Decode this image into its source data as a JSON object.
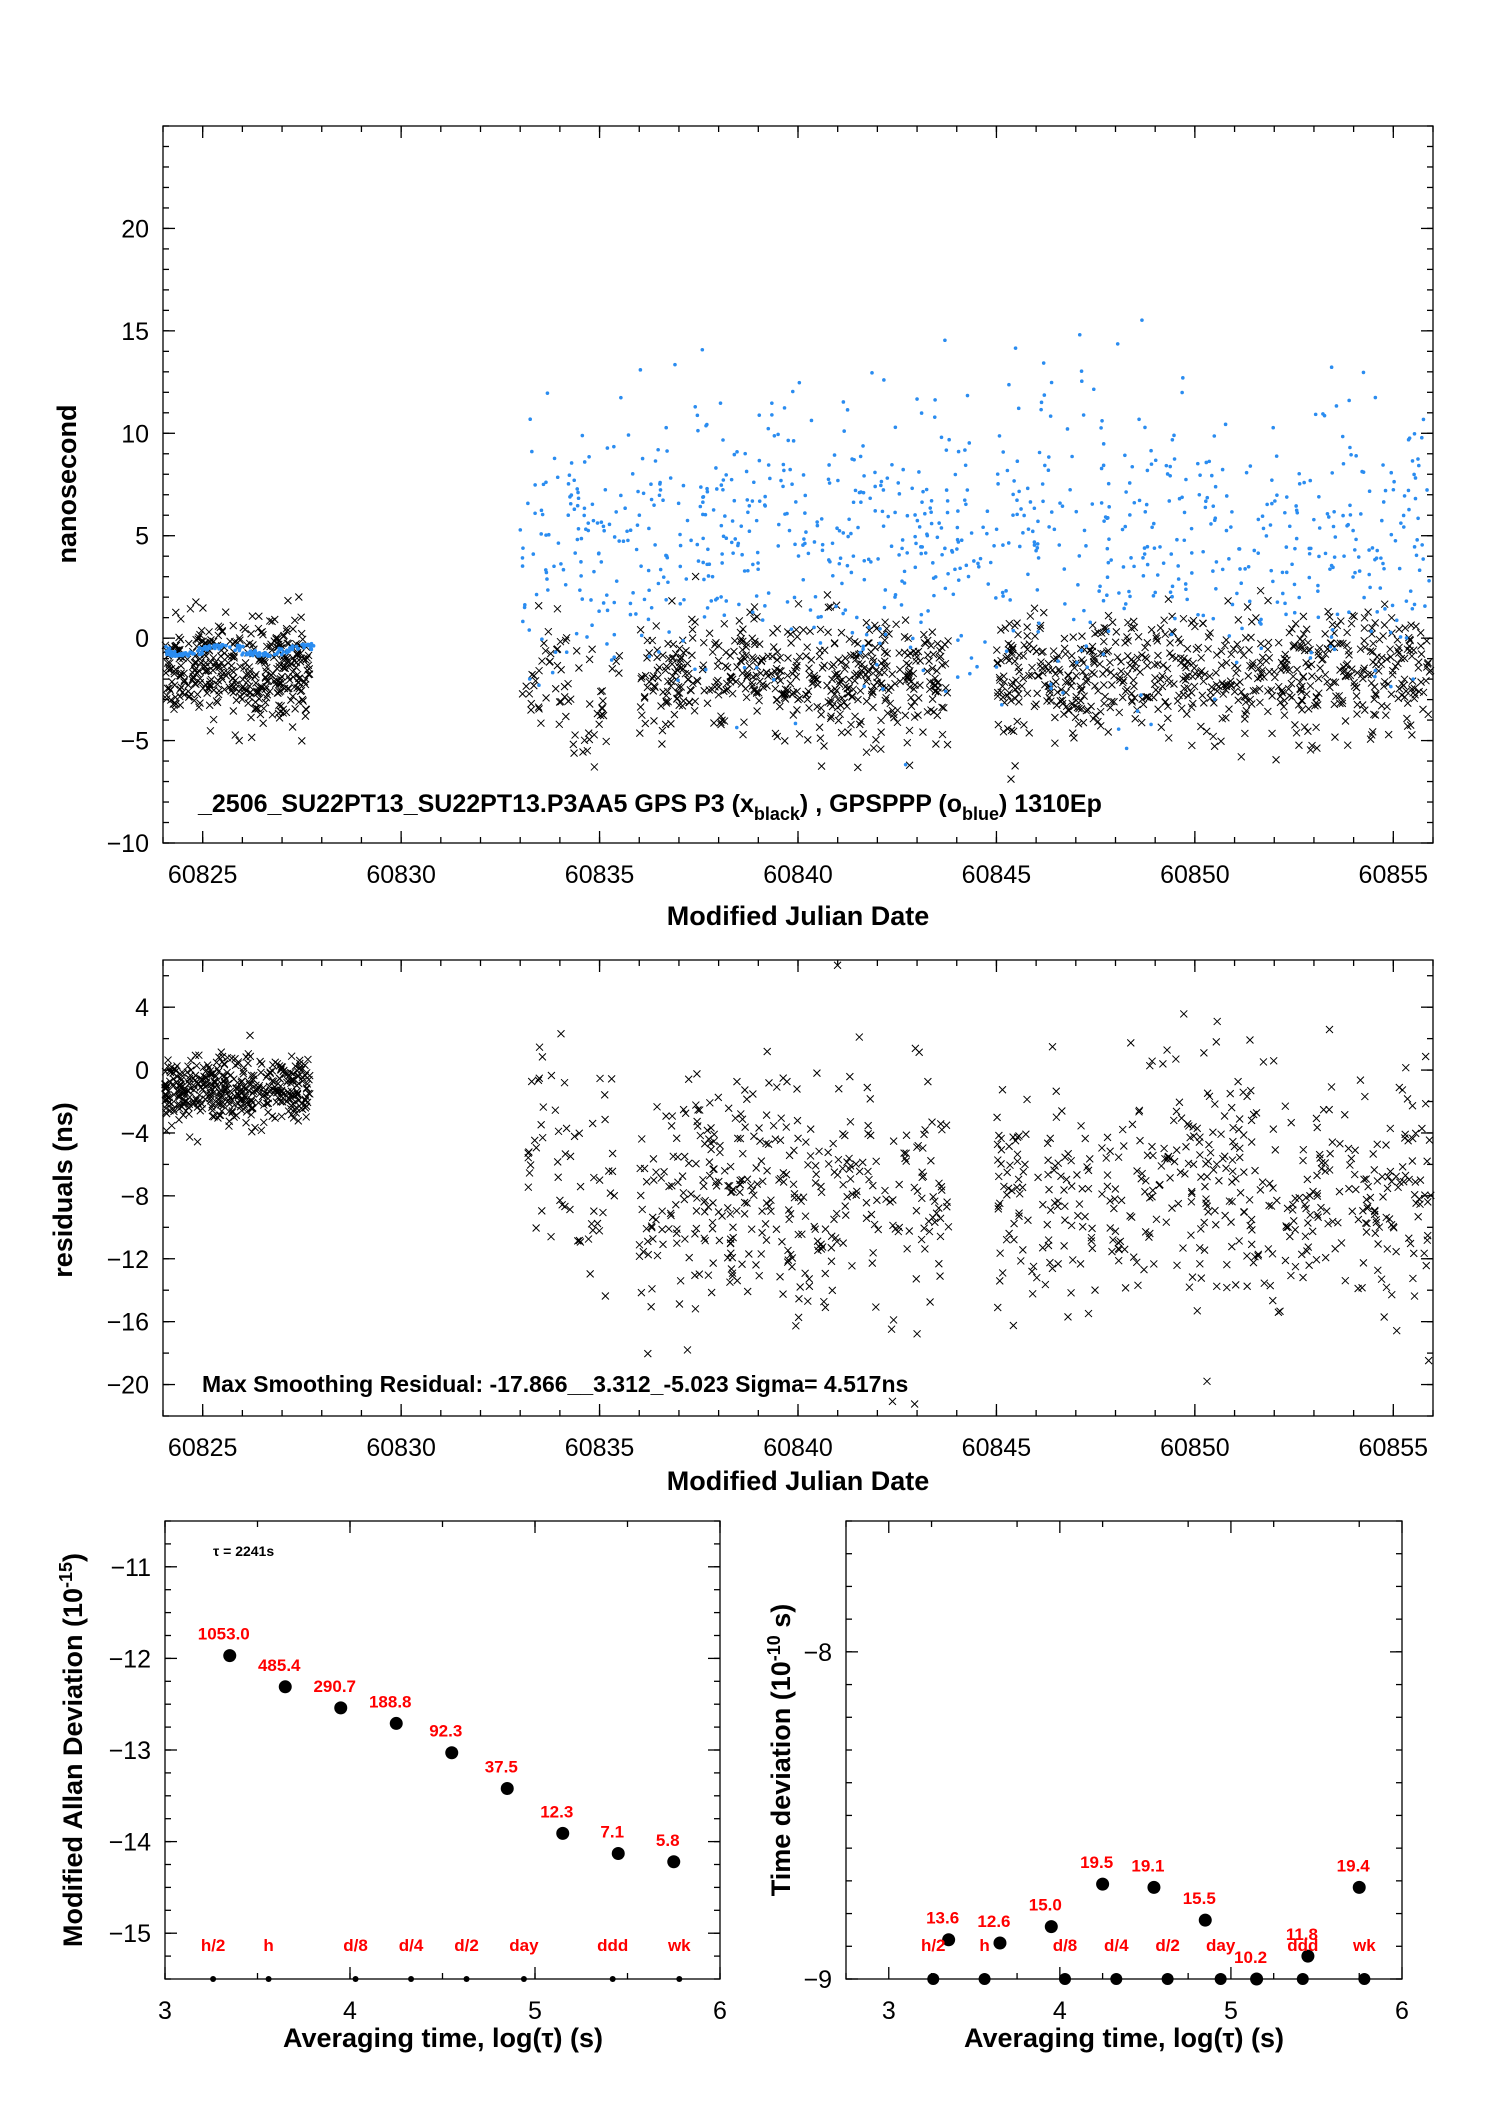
{
  "chart_data": [
    {
      "type": "scatter",
      "id": "timeseries",
      "title": "",
      "xlabel": "Modified Julian Date",
      "ylabel": "nanosecond",
      "xlim": [
        60824,
        60856
      ],
      "ylim": [
        -10,
        25
      ],
      "xticks": [
        60825,
        60830,
        60835,
        60840,
        60845,
        60850,
        60855
      ],
      "yticks": [
        -10,
        -5,
        0,
        5,
        10,
        15,
        20
      ],
      "annotation": {
        "main": "_2506_SU22PT13_SU22PT13.P3AA5     GPS P3 (x",
        "sub1": "black",
        "mid": ") ,  GPSPPP (o",
        "sub2": "blue",
        "tail": ")  1310Ep"
      },
      "series": [
        {
          "name": "GPS P3 (x black)",
          "marker": "x",
          "color": "#000000",
          "segments": [
            {
              "x0": 60824.0,
              "x1": 60827.7,
              "n": 420,
              "base": -1.6,
              "amp": 0.6,
              "spread": 1.1
            },
            {
              "x0": 60833.0,
              "x1": 60835.5,
              "n": 70,
              "base": -2.6,
              "amp": 1.5,
              "spread": 1.6
            },
            {
              "x0": 60836.0,
              "x1": 60843.8,
              "n": 520,
              "base": -1.9,
              "amp": 0.6,
              "spread": 1.4
            },
            {
              "x0": 60845.0,
              "x1": 60856.0,
              "n": 700,
              "base": -1.8,
              "amp": 0.7,
              "spread": 1.4
            }
          ]
        },
        {
          "name": "GPSPPP (o blue)",
          "marker": "o",
          "color": "#2a8cf0",
          "segments": [
            {
              "x0": 60824.0,
              "x1": 60827.8,
              "n": 160,
              "base": -0.6,
              "amp": 0.25,
              "spread": 0.05
            },
            {
              "x0": 60833.0,
              "x1": 60856.0,
              "n": 900,
              "base": 5.0,
              "amp": 1.8,
              "spread": 3.2
            }
          ]
        }
      ]
    },
    {
      "type": "scatter",
      "id": "residuals",
      "title": "",
      "xlabel": "Modified Julian Date",
      "ylabel": "residuals (ns)",
      "xlim": [
        60824,
        60856
      ],
      "ylim": [
        -22,
        7
      ],
      "xticks": [
        60825,
        60830,
        60835,
        60840,
        60845,
        60850,
        60855
      ],
      "yticks": [
        -20,
        -16,
        -12,
        -8,
        -4,
        0,
        4
      ],
      "annotation": "Max Smoothing Residual: -17.866__3.312_-5.023  Sigma= 4.517ns",
      "series": [
        {
          "name": "residuals",
          "marker": "x",
          "color": "#000000",
          "segments": [
            {
              "x0": 60824.0,
              "x1": 60827.7,
              "n": 420,
              "base": -1.3,
              "amp": 0.5,
              "spread": 1.0
            },
            {
              "x0": 60833.0,
              "x1": 60835.5,
              "n": 60,
              "base": -6.5,
              "amp": 2.5,
              "spread": 3.5
            },
            {
              "x0": 60836.0,
              "x1": 60843.8,
              "n": 380,
              "base": -8.0,
              "amp": 2.5,
              "spread": 3.6
            },
            {
              "x0": 60845.0,
              "x1": 60856.0,
              "n": 480,
              "base": -7.8,
              "amp": 2.5,
              "spread": 3.6
            }
          ]
        }
      ]
    },
    {
      "type": "scatter",
      "id": "mdev",
      "title": "",
      "xlabel": "Averaging time, log(τ) (s)",
      "ylabel": "Modified Allan Deviation (10",
      "ylabel_exp": "-15",
      "ylabel_tail": ")",
      "xlim": [
        3,
        6
      ],
      "ylim": [
        -15.5,
        -10.5
      ],
      "xticks": [
        3,
        4,
        5,
        6
      ],
      "yticks": [
        -15,
        -14,
        -13,
        -12,
        -11
      ],
      "tau_note": "τ = 2241s",
      "points": [
        {
          "x": 3.35,
          "y": -11.97,
          "label": "1053.0"
        },
        {
          "x": 3.65,
          "y": -12.31,
          "label": "485.4"
        },
        {
          "x": 3.95,
          "y": -12.54,
          "label": "290.7"
        },
        {
          "x": 4.25,
          "y": -12.71,
          "label": "188.8"
        },
        {
          "x": 4.55,
          "y": -13.03,
          "label": "92.3"
        },
        {
          "x": 4.85,
          "y": -13.42,
          "label": "37.5"
        },
        {
          "x": 5.15,
          "y": -13.91,
          "label": "12.3"
        },
        {
          "x": 5.45,
          "y": -14.13,
          "label": "7.1"
        },
        {
          "x": 5.75,
          "y": -14.22,
          "label": "5.8"
        }
      ],
      "markers": [
        {
          "x": 3.26,
          "label": "h/2"
        },
        {
          "x": 3.56,
          "label": "h"
        },
        {
          "x": 4.03,
          "label": "d/8"
        },
        {
          "x": 4.33,
          "label": "d/4"
        },
        {
          "x": 4.63,
          "label": "d/2"
        },
        {
          "x": 4.94,
          "label": "day"
        },
        {
          "x": 5.42,
          "label": "ddd"
        },
        {
          "x": 5.78,
          "label": "wk"
        }
      ]
    },
    {
      "type": "scatter",
      "id": "tdev",
      "title": "",
      "xlabel": "Averaging time, log(τ) (s)",
      "ylabel": "Time deviation (10",
      "ylabel_exp": "-10",
      "ylabel_tail": " s)",
      "xlim": [
        2.75,
        6
      ],
      "ylim": [
        -9.0,
        -7.6
      ],
      "xticks": [
        3,
        4,
        5,
        6
      ],
      "yticks": [
        -9,
        -8
      ],
      "points": [
        {
          "x": 3.35,
          "y": -8.88,
          "label": "13.6"
        },
        {
          "x": 3.65,
          "y": -8.89,
          "label": "12.6"
        },
        {
          "x": 3.95,
          "y": -8.84,
          "label": "15.0"
        },
        {
          "x": 4.25,
          "y": -8.71,
          "label": "19.5"
        },
        {
          "x": 4.55,
          "y": -8.72,
          "label": "19.1"
        },
        {
          "x": 4.85,
          "y": -8.82,
          "label": "15.5"
        },
        {
          "x": 5.15,
          "y": -9.0,
          "label": "10.2"
        },
        {
          "x": 5.45,
          "y": -8.93,
          "label": "11.8"
        },
        {
          "x": 5.75,
          "y": -8.72,
          "label": "19.4"
        }
      ],
      "markers": [
        {
          "x": 3.26,
          "label": "h/2"
        },
        {
          "x": 3.56,
          "label": "h"
        },
        {
          "x": 4.03,
          "label": "d/8"
        },
        {
          "x": 4.33,
          "label": "d/4"
        },
        {
          "x": 4.63,
          "label": "d/2"
        },
        {
          "x": 4.94,
          "label": "day"
        },
        {
          "x": 5.42,
          "label": "ddd"
        },
        {
          "x": 5.78,
          "label": "wk"
        }
      ]
    }
  ]
}
